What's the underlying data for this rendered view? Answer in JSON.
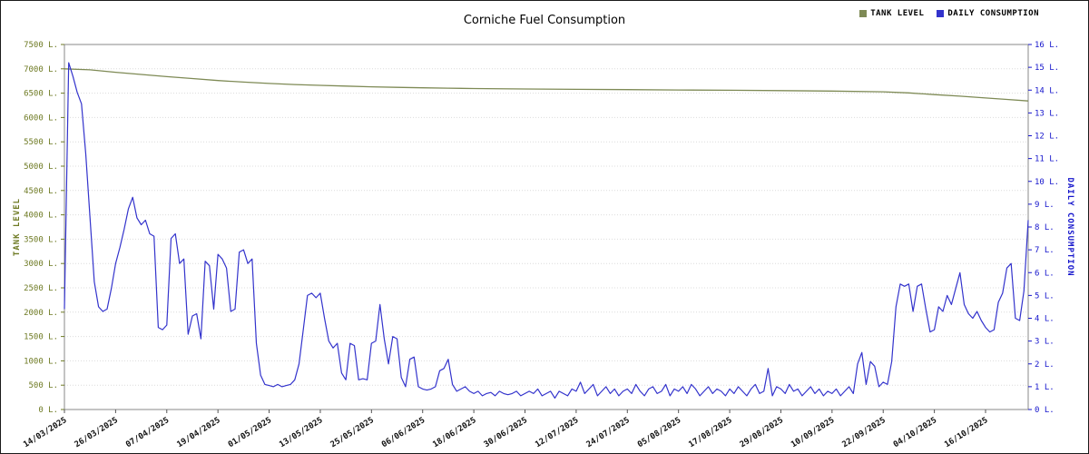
{
  "title": "Corniche Fuel Consumption",
  "chart_data": {
    "type": "line",
    "title": "Corniche Fuel Consumption",
    "legend_position": "top-right",
    "grid": "horizontal-dotted",
    "x_start_date": "14/03/2025",
    "x_unit": "day",
    "x_tick_every": 12,
    "total_days": 227,
    "x_tick_labels": [
      "14/03/2025",
      "26/03/2025",
      "07/04/2025",
      "19/04/2025",
      "01/05/2025",
      "13/05/2025",
      "25/05/2025",
      "06/06/2025",
      "18/06/2025",
      "30/06/2025",
      "12/07/2025",
      "24/07/2025",
      "05/08/2025",
      "17/08/2025",
      "29/08/2025",
      "10/09/2025",
      "22/09/2025",
      "04/10/2025",
      "16/10/2025"
    ],
    "left_axis": {
      "label": "TANK LEVEL",
      "range": [
        0,
        7500
      ],
      "tick_step": 500,
      "unit": "L.",
      "text_color": "#6e7a23",
      "tick_labels": [
        "0 L.",
        "500 L.",
        "1000 L.",
        "1500 L.",
        "2000 L.",
        "2500 L.",
        "3000 L.",
        "3500 L.",
        "4000 L.",
        "4500 L.",
        "5000 L.",
        "5500 L.",
        "6000 L.",
        "6500 L.",
        "7000 L.",
        "7500 L."
      ]
    },
    "right_axis": {
      "label": "DAILY CONSUMPTION",
      "range": [
        0,
        16
      ],
      "tick_step": 1,
      "unit": "L.",
      "text_color": "#1515cc",
      "tick_labels": [
        "0 L.",
        "1 L.",
        "2 L.",
        "3 L.",
        "4 L.",
        "5 L.",
        "6 L.",
        "7 L.",
        "8 L.",
        "9 L.",
        "10 L.",
        "11 L.",
        "12 L.",
        "13 L.",
        "14 L.",
        "15 L.",
        "16 L."
      ]
    },
    "series": [
      {
        "name": "TANK LEVEL",
        "axis": "left",
        "color": "#7e8a55",
        "points_day_value": [
          [
            0,
            7000
          ],
          [
            6,
            6980
          ],
          [
            12,
            6930
          ],
          [
            18,
            6885
          ],
          [
            24,
            6840
          ],
          [
            30,
            6800
          ],
          [
            36,
            6760
          ],
          [
            42,
            6728
          ],
          [
            48,
            6700
          ],
          [
            54,
            6678
          ],
          [
            60,
            6660
          ],
          [
            66,
            6645
          ],
          [
            72,
            6630
          ],
          [
            78,
            6620
          ],
          [
            84,
            6610
          ],
          [
            90,
            6602
          ],
          [
            96,
            6595
          ],
          [
            108,
            6585
          ],
          [
            120,
            6578
          ],
          [
            132,
            6572
          ],
          [
            144,
            6566
          ],
          [
            156,
            6560
          ],
          [
            168,
            6552
          ],
          [
            180,
            6542
          ],
          [
            192,
            6528
          ],
          [
            198,
            6505
          ],
          [
            204,
            6470
          ],
          [
            210,
            6438
          ],
          [
            216,
            6402
          ],
          [
            221,
            6372
          ],
          [
            226,
            6340
          ]
        ]
      },
      {
        "name": "DAILY CONSUMPTION",
        "axis": "right",
        "color": "#3333cc",
        "values_daily": [
          4.4,
          15.2,
          14.6,
          13.9,
          13.4,
          11.2,
          8.4,
          5.6,
          4.5,
          4.3,
          4.4,
          5.3,
          6.4,
          7.1,
          7.9,
          8.8,
          9.3,
          8.4,
          8.1,
          8.3,
          7.7,
          7.6,
          3.6,
          3.5,
          3.7,
          7.5,
          7.7,
          6.4,
          6.6,
          3.3,
          4.1,
          4.2,
          3.1,
          6.5,
          6.3,
          4.4,
          6.8,
          6.6,
          6.2,
          4.3,
          4.4,
          6.9,
          7.0,
          6.4,
          6.6,
          2.9,
          1.5,
          1.1,
          1.05,
          1.0,
          1.1,
          1.0,
          1.05,
          1.1,
          1.3,
          2.0,
          3.5,
          5.0,
          5.1,
          4.9,
          5.1,
          4.0,
          3.0,
          2.7,
          2.9,
          1.6,
          1.3,
          2.9,
          2.8,
          1.3,
          1.35,
          1.3,
          2.9,
          3.0,
          4.6,
          3.1,
          2.0,
          3.2,
          3.1,
          1.4,
          1.0,
          2.2,
          2.3,
          1.0,
          0.9,
          0.85,
          0.9,
          1.0,
          1.7,
          1.8,
          2.2,
          1.1,
          0.8,
          0.9,
          1.0,
          0.8,
          0.7,
          0.8,
          0.6,
          0.7,
          0.75,
          0.6,
          0.8,
          0.7,
          0.65,
          0.7,
          0.8,
          0.6,
          0.7,
          0.8,
          0.7,
          0.9,
          0.6,
          0.7,
          0.8,
          0.5,
          0.8,
          0.7,
          0.6,
          0.9,
          0.8,
          1.2,
          0.7,
          0.9,
          1.1,
          0.6,
          0.8,
          1.0,
          0.7,
          0.9,
          0.6,
          0.8,
          0.9,
          0.7,
          1.1,
          0.8,
          0.6,
          0.9,
          1.0,
          0.7,
          0.8,
          1.1,
          0.6,
          0.9,
          0.8,
          1.0,
          0.7,
          1.1,
          0.9,
          0.6,
          0.8,
          1.0,
          0.7,
          0.9,
          0.8,
          0.6,
          0.9,
          0.7,
          1.0,
          0.8,
          0.6,
          0.9,
          1.1,
          0.7,
          0.8,
          1.8,
          0.6,
          1.0,
          0.9,
          0.7,
          1.1,
          0.8,
          0.9,
          0.6,
          0.8,
          1.0,
          0.7,
          0.9,
          0.6,
          0.8,
          0.7,
          0.9,
          0.6,
          0.8,
          1.0,
          0.7,
          2.0,
          2.5,
          1.1,
          2.1,
          1.9,
          1.0,
          1.2,
          1.1,
          2.1,
          4.5,
          5.5,
          5.4,
          5.5,
          4.3,
          5.4,
          5.5,
          4.4,
          3.4,
          3.5,
          4.5,
          4.3,
          5.0,
          4.6,
          5.3,
          6.0,
          4.6,
          4.2,
          4.0,
          4.3,
          3.9,
          3.6,
          3.4,
          3.5,
          4.7,
          5.1,
          6.2,
          6.4,
          4.0,
          3.9,
          5.2,
          8.3
        ]
      }
    ]
  }
}
